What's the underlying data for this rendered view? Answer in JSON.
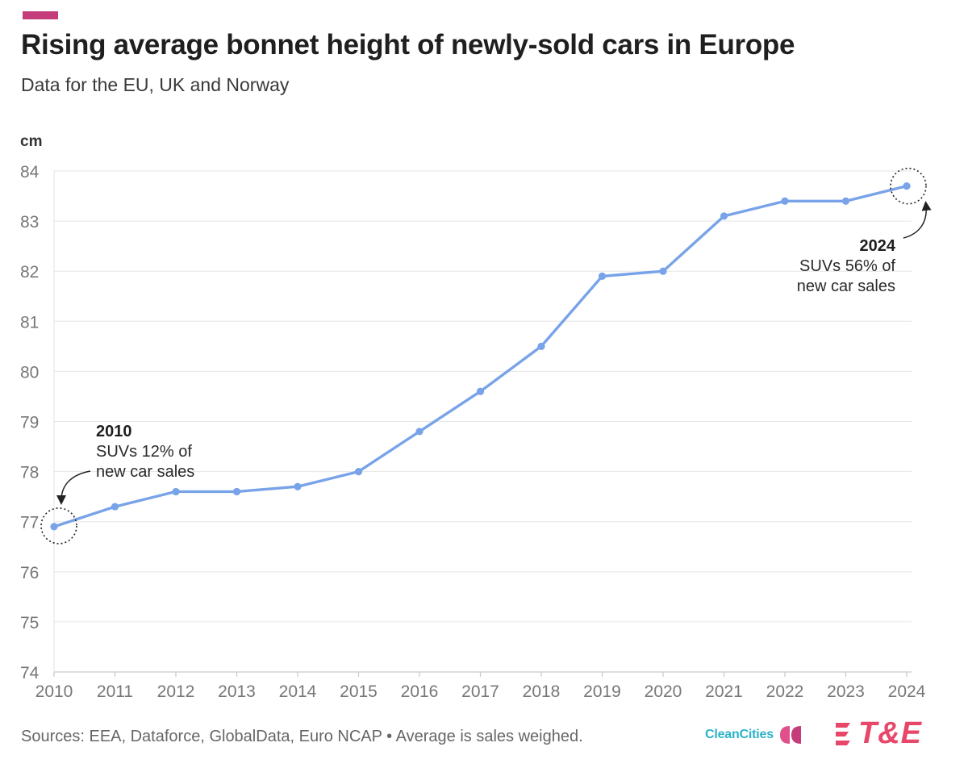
{
  "header": {
    "title": "Rising average bonnet height of newly-sold cars in Europe",
    "subtitle": "Data for the EU, UK and Norway"
  },
  "chart_data": {
    "type": "line",
    "title": "Rising average bonnet height of newly-sold cars in Europe",
    "subtitle": "Data for the EU, UK and Norway",
    "xlabel": "",
    "ylabel": "cm",
    "x": [
      "2010",
      "2011",
      "2012",
      "2013",
      "2014",
      "2015",
      "2016",
      "2017",
      "2018",
      "2019",
      "2020",
      "2021",
      "2022",
      "2023",
      "2024"
    ],
    "values": [
      76.9,
      77.3,
      77.6,
      77.6,
      77.7,
      78.0,
      78.8,
      79.6,
      80.5,
      81.9,
      82.0,
      83.1,
      83.4,
      83.4,
      83.7
    ],
    "ylim": [
      74,
      84
    ],
    "yticks": [
      74,
      75,
      76,
      77,
      78,
      79,
      80,
      81,
      82,
      83,
      84
    ],
    "grid": true,
    "legend": "none",
    "annotations": [
      {
        "year": "2010",
        "title": "2010",
        "lines": [
          "SUVs 12% of",
          "new car sales"
        ]
      },
      {
        "year": "2024",
        "title": "2024",
        "lines": [
          "SUVs 56% of",
          "new car sales"
        ]
      }
    ]
  },
  "footer": {
    "source": "Sources: EEA, Dataforce, GlobalData, Euro NCAP • Average is sales weighed.",
    "logo_cleancities": "CleanCities",
    "logo_te": "T&E"
  },
  "colors": {
    "accent": "#c43d7a",
    "line": "#79a3e8",
    "grid": "#e6e6e6",
    "axis_text": "#777777",
    "cleancities": "#2bb3c7",
    "te": "#e8476a"
  }
}
